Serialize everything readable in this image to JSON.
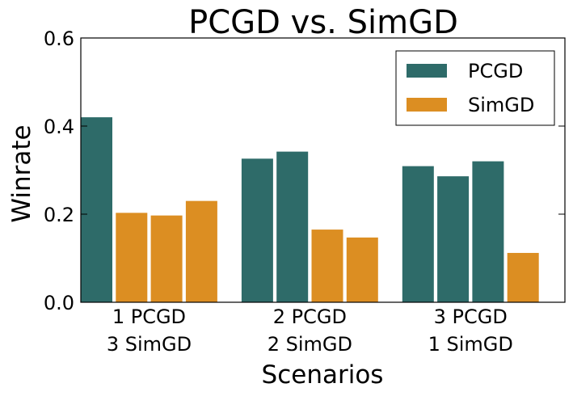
{
  "chart_data": {
    "type": "bar",
    "title": "PCGD vs. SimGD",
    "xlabel": "Scenarios",
    "ylabel": "Winrate",
    "ylim": [
      0,
      0.6
    ],
    "yticks": [
      "0.0",
      "0.2",
      "0.4",
      "0.6"
    ],
    "yticks_values": [
      0,
      0.2,
      0.4,
      0.6
    ],
    "grid": false,
    "legend_position": "top-right",
    "legend": [
      {
        "name": "PCGD",
        "color": "#2e6b69"
      },
      {
        "name": "SimGD",
        "color": "#dc8e22"
      }
    ],
    "groups": [
      {
        "label_line1": "1 PCGD",
        "label_line2": "3 SimGD",
        "bars": [
          {
            "series": "PCGD",
            "value": 0.42
          },
          {
            "series": "SimGD",
            "value": 0.203
          },
          {
            "series": "SimGD",
            "value": 0.197
          },
          {
            "series": "SimGD",
            "value": 0.23
          }
        ]
      },
      {
        "label_line1": "2 PCGD",
        "label_line2": "2 SimGD",
        "bars": [
          {
            "series": "PCGD",
            "value": 0.326
          },
          {
            "series": "PCGD",
            "value": 0.342
          },
          {
            "series": "SimGD",
            "value": 0.165
          },
          {
            "series": "SimGD",
            "value": 0.147
          }
        ]
      },
      {
        "label_line1": "3 PCGD",
        "label_line2": "1 SimGD",
        "bars": [
          {
            "series": "PCGD",
            "value": 0.309
          },
          {
            "series": "PCGD",
            "value": 0.286
          },
          {
            "series": "PCGD",
            "value": 0.32
          },
          {
            "series": "SimGD",
            "value": 0.112
          }
        ]
      }
    ]
  }
}
